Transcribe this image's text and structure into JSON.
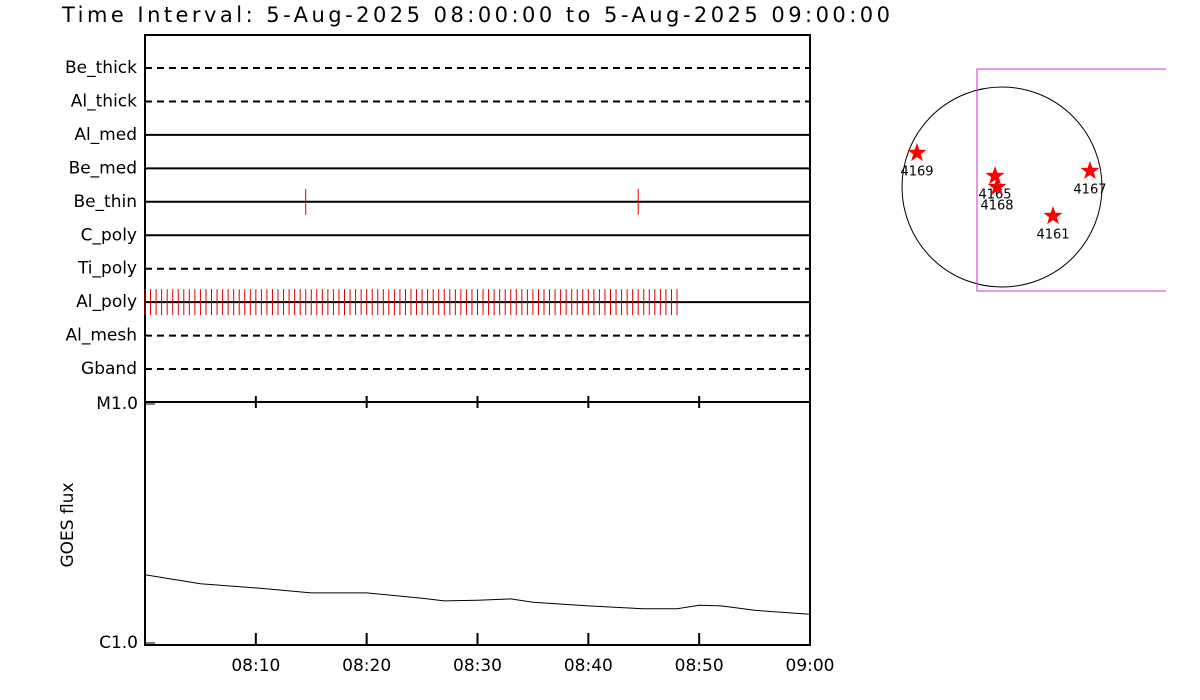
{
  "chart_data": [
    {
      "type": "event",
      "title": "Time Interval:  5-Aug-2025 08:00:00 to  5-Aug-2025 09:00:00",
      "xlim": [
        "08:00",
        "09:00"
      ],
      "event_color": "#e00000",
      "categories": [
        "Be_thick",
        "Al_thick",
        "Al_med",
        "Be_med",
        "Be_thin",
        "C_poly",
        "Ti_poly",
        "Al_poly",
        "Al_mesh",
        "Gband"
      ],
      "styles": [
        "dashed",
        "dashed",
        "solid",
        "solid",
        "solid",
        "solid",
        "dashed",
        "solid",
        "dashed",
        "dashed"
      ],
      "events": [
        [],
        [],
        [],
        [],
        [
          "08:14:30",
          "08:44:30"
        ],
        [],
        [],
        [
          "08:00:00",
          "08:00:30",
          "08:01:00",
          "08:01:30",
          "08:02:00",
          "08:02:30",
          "08:03:00",
          "08:03:30",
          "08:04:00",
          "08:04:30",
          "08:05:00",
          "08:05:30",
          "08:06:00",
          "08:06:30",
          "08:07:00",
          "08:07:30",
          "08:08:00",
          "08:08:30",
          "08:09:00",
          "08:09:30",
          "08:10:00",
          "08:10:30",
          "08:11:00",
          "08:11:30",
          "08:12:00",
          "08:12:30",
          "08:13:00",
          "08:13:30",
          "08:14:00",
          "08:14:30",
          "08:15:00",
          "08:15:30",
          "08:16:00",
          "08:16:30",
          "08:17:00",
          "08:17:30",
          "08:18:00",
          "08:18:30",
          "08:19:00",
          "08:19:30",
          "08:20:00",
          "08:20:30",
          "08:21:00",
          "08:21:30",
          "08:22:00",
          "08:22:30",
          "08:23:00",
          "08:23:30",
          "08:24:00",
          "08:24:30",
          "08:25:00",
          "08:25:30",
          "08:26:00",
          "08:26:30",
          "08:27:00",
          "08:27:30",
          "08:28:00",
          "08:28:30",
          "08:29:00",
          "08:29:30",
          "08:30:00",
          "08:30:30",
          "08:31:00",
          "08:31:30",
          "08:32:00",
          "08:32:30",
          "08:33:00",
          "08:33:30",
          "08:34:00",
          "08:34:30",
          "08:35:00",
          "08:35:30",
          "08:36:00",
          "08:36:30",
          "08:37:00",
          "08:37:30",
          "08:38:00",
          "08:38:30",
          "08:39:00",
          "08:39:30",
          "08:40:00",
          "08:40:30",
          "08:41:00",
          "08:41:30",
          "08:42:00",
          "08:42:30",
          "08:43:00",
          "08:43:30",
          "08:44:00",
          "08:44:30",
          "08:45:00",
          "08:45:30",
          "08:46:00",
          "08:46:30",
          "08:47:00",
          "08:47:30",
          "08:48:00"
        ],
        [],
        []
      ]
    },
    {
      "type": "line",
      "ylabel": "GOES flux",
      "log_scale": true,
      "color": "#000000",
      "xlim": [
        "08:00",
        "09:00"
      ],
      "xticks": [
        "08:10",
        "08:20",
        "08:30",
        "08:40",
        "08:50",
        "09:00"
      ],
      "ylim": [
        1e-06,
        1e-05
      ],
      "yticks": [
        {
          "value": 1e-05,
          "label": "M1.0"
        },
        {
          "value": 1e-06,
          "label": "C1.0"
        }
      ],
      "x": [
        "08:00",
        "08:05",
        "08:10",
        "08:15",
        "08:20",
        "08:25",
        "08:27",
        "08:30",
        "08:33",
        "08:35",
        "08:40",
        "08:45",
        "08:48",
        "08:50",
        "08:52",
        "08:55",
        "09:00"
      ],
      "values": [
        1.93e-06,
        1.77e-06,
        1.7e-06,
        1.62e-06,
        1.62e-06,
        1.54e-06,
        1.5e-06,
        1.51e-06,
        1.53e-06,
        1.48e-06,
        1.43e-06,
        1.39e-06,
        1.39e-06,
        1.44e-06,
        1.43e-06,
        1.37e-06,
        1.32e-06
      ]
    },
    {
      "type": "scatter",
      "solar_radius": 947,
      "color": "#ff0000",
      "fov_color": "#cc33cc",
      "fov": {
        "x": [
          -237,
          1600
        ],
        "y": [
          -985,
          1117
        ]
      },
      "points": [
        {
          "label": "4169",
          "x": -805,
          "y": 322
        },
        {
          "label": "4165",
          "x": -66,
          "y": 104
        },
        {
          "label": "4168",
          "x": -47,
          "y": 0
        },
        {
          "label": "4167",
          "x": 833,
          "y": 152
        },
        {
          "label": "4161",
          "x": 483,
          "y": -275
        }
      ]
    }
  ]
}
